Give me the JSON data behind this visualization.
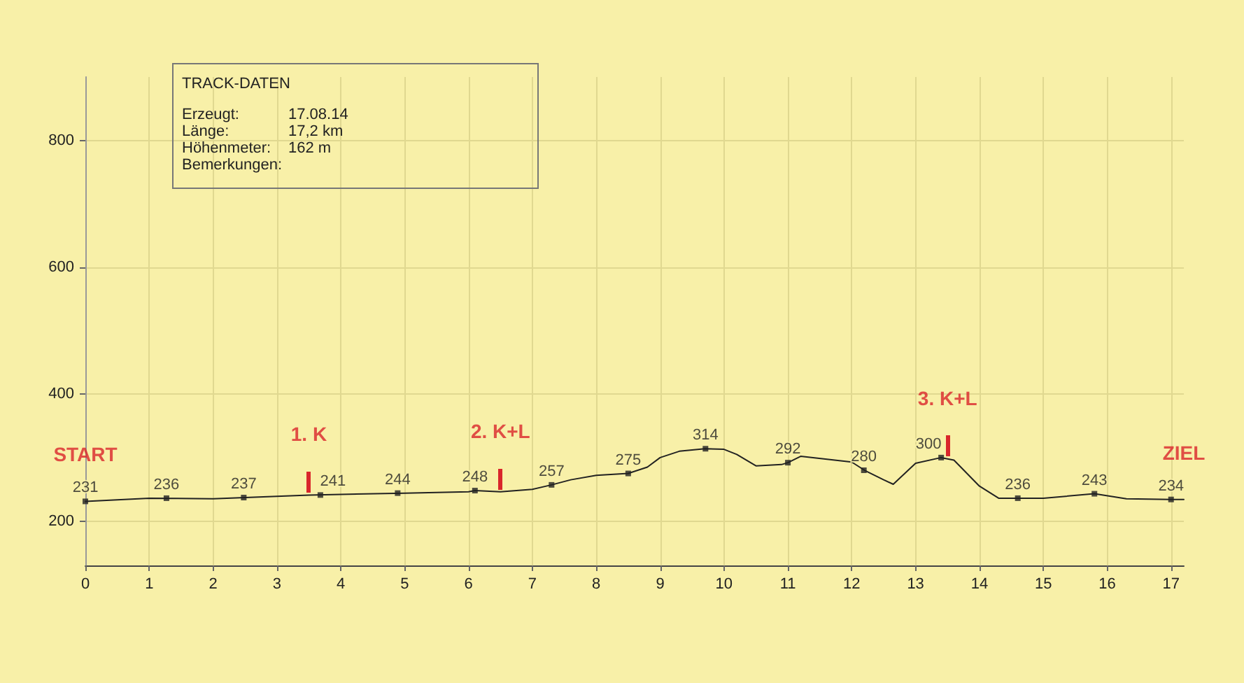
{
  "chart_data": {
    "type": "line",
    "title": "TRACK-DATEN",
    "xlim": [
      0,
      17.2
    ],
    "xticks": [
      0,
      1,
      2,
      3,
      4,
      5,
      6,
      7,
      8,
      9,
      10,
      11,
      12,
      13,
      14,
      15,
      16,
      17
    ],
    "ylim": [
      130,
      900
    ],
    "yticks": [
      200,
      400,
      600,
      800
    ],
    "grid": true,
    "series": [
      {
        "color": "#222222",
        "marker": "none",
        "x": [
          0,
          1,
          2,
          2.5,
          3,
          3.5,
          4,
          5,
          6,
          6.1,
          6.5,
          7,
          7.3,
          7.6,
          8,
          8.5,
          8.8,
          9,
          9.3,
          9.7,
          10,
          10.2,
          10.5,
          10.9,
          11,
          11.2,
          12,
          12.2,
          12.5,
          12.65,
          13,
          13.4,
          13.6,
          14,
          14.3,
          14.6,
          15,
          15.8,
          16.3,
          17,
          17.2
        ],
        "values": [
          231,
          236,
          235,
          237,
          239,
          241,
          242,
          244,
          246,
          248,
          246,
          250,
          257,
          265,
          272,
          275,
          285,
          300,
          310,
          314,
          313,
          305,
          287,
          289,
          292,
          302,
          293,
          280,
          265,
          258,
          291,
          300,
          296,
          255,
          236,
          236,
          236,
          243,
          235,
          234,
          234
        ]
      },
      {
        "type": "scatter",
        "color": "#222222",
        "marker": "square",
        "x": [
          0,
          1.27,
          2.48,
          3.68,
          4.89,
          6.1,
          7.3,
          8.5,
          9.71,
          11.0,
          12.19,
          13.4,
          14.6,
          15.8,
          17.0
        ],
        "values": [
          231,
          236,
          237,
          241,
          244,
          248,
          257,
          275,
          314,
          292,
          280,
          300,
          236,
          243,
          234
        ],
        "value_labels": [
          "231",
          "236",
          "237",
          "241",
          "244",
          "248",
          "257",
          "275",
          "314",
          "292",
          "280",
          "300",
          "236",
          "243",
          "234"
        ]
      }
    ],
    "annotations": [
      {
        "text": "START",
        "x": 0,
        "y": 231
      },
      {
        "text": "1. K",
        "x": 3.5,
        "y": 241
      },
      {
        "text": "2. K+L",
        "x": 6.5,
        "y": 246
      },
      {
        "text": "3. K+L",
        "x": 13.5,
        "y": 298
      },
      {
        "text": "ZIEL",
        "x": 17.2,
        "y": 234
      },
      "Erzeugt: 17.08.14",
      "Länge: 17,2 km",
      "Höhenmeter: 162 m",
      "Bemerkungen:"
    ]
  }
}
